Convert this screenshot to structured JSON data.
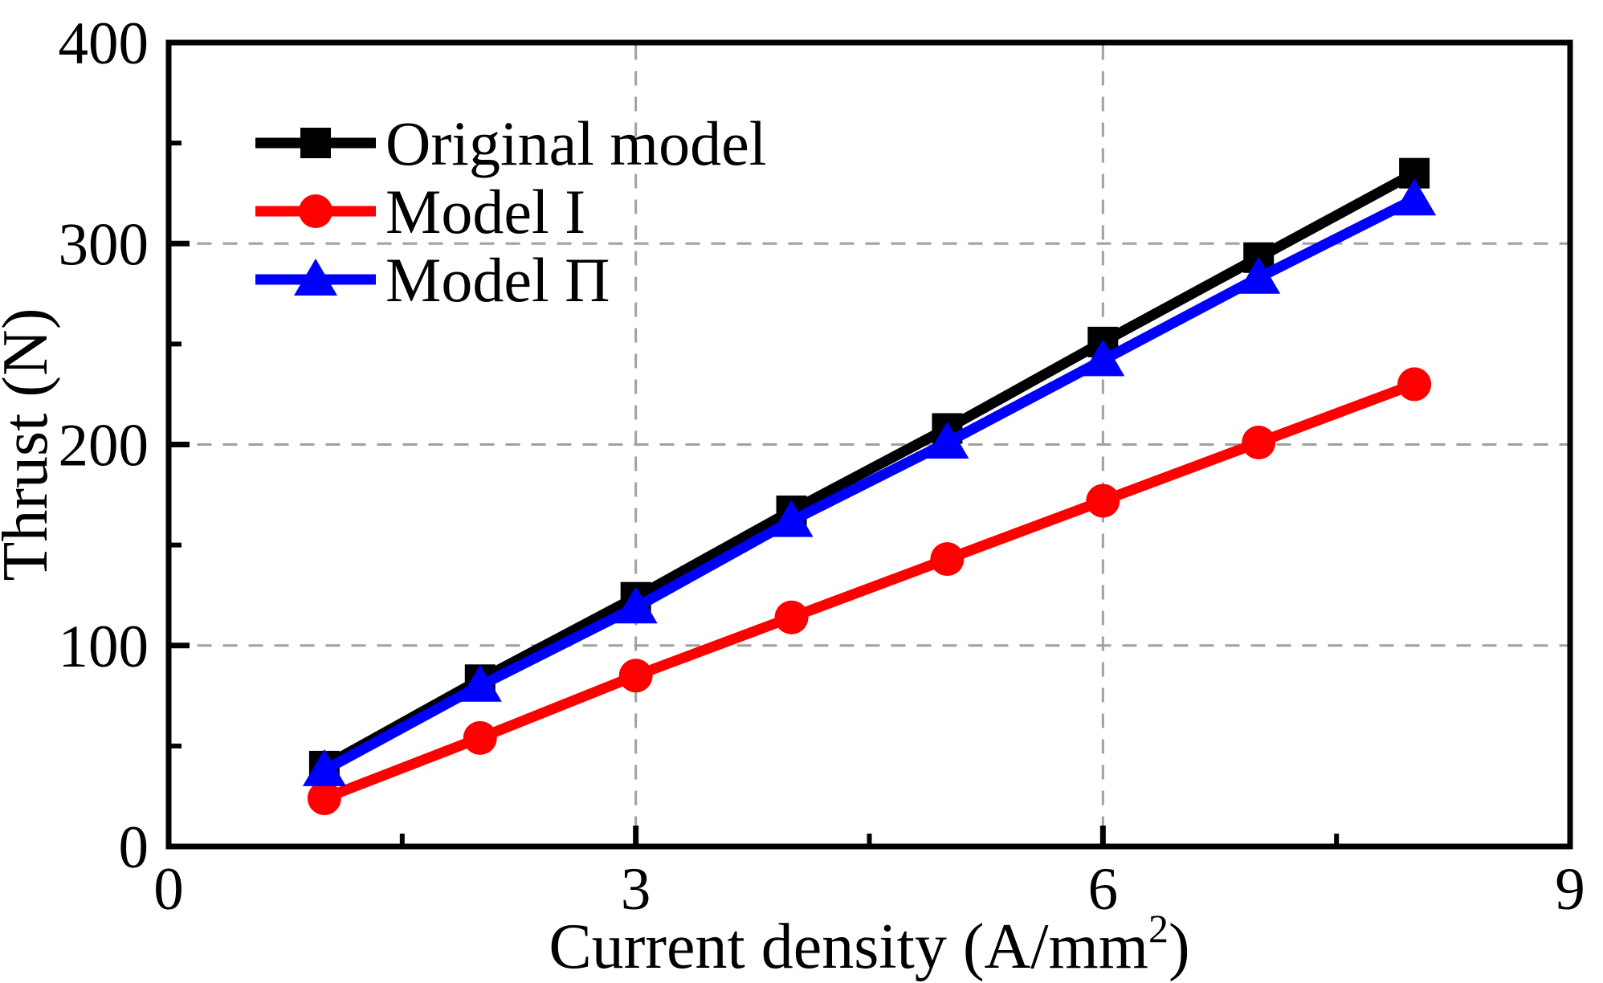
{
  "chart_data": {
    "type": "line",
    "title": "",
    "xlabel": {
      "main": "Current density (A/mm",
      "sup": "2",
      "end": ")"
    },
    "ylabel": "Thrust (N)",
    "x_axis": {
      "min": 0,
      "max": 9,
      "major_ticks": [
        0,
        3,
        6,
        9
      ],
      "major_tick_labels": [
        "0",
        "3",
        "6",
        "9"
      ],
      "minor_ticks": [
        1.5,
        4.5,
        7.5
      ],
      "gridlines": [
        3,
        6
      ]
    },
    "y_axis": {
      "min": 0,
      "max": 400,
      "major_ticks": [
        0,
        100,
        200,
        300,
        400
      ],
      "major_tick_labels": [
        "0",
        "100",
        "200",
        "300",
        "400"
      ],
      "minor_ticks": [
        50,
        150,
        250,
        350
      ],
      "gridlines": [
        100,
        200,
        300
      ]
    },
    "x": [
      1,
      2,
      3,
      4,
      5,
      6,
      7,
      8
    ],
    "series": [
      {
        "name": "Original model",
        "color": "#000000",
        "marker": "square",
        "values": [
          40,
          83,
          124,
          167,
          208,
          251,
          293,
          335
        ]
      },
      {
        "name": "Model I",
        "color": "#ff0000",
        "marker": "circle",
        "values": [
          24,
          54,
          85,
          114,
          143,
          172,
          201,
          230
        ]
      },
      {
        "name": "Model Π",
        "color": "#0000ff",
        "marker": "triangle",
        "values": [
          38,
          80,
          119,
          162,
          201,
          242,
          283,
          322
        ]
      }
    ],
    "legend": {
      "position": "top-left",
      "items": [
        "Original model",
        "Model I",
        "Model Π"
      ]
    },
    "grid_on": true,
    "grid_color": "#a0a0a0",
    "axis_color": "#000000",
    "background": "#ffffff"
  }
}
